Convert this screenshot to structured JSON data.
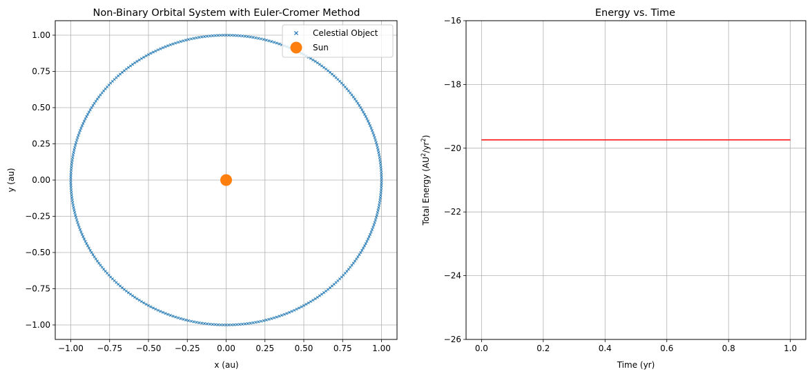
{
  "chart_data": [
    {
      "type": "scatter",
      "title": "Non-Binary Orbital System with Euler-Cromer Method",
      "xlabel": "x (au)",
      "ylabel": "y (au)",
      "xlim": [
        -1.1,
        1.1
      ],
      "ylim": [
        -1.1,
        1.1
      ],
      "x_ticks": [
        -1.0,
        -0.75,
        -0.5,
        -0.25,
        0.0,
        0.25,
        0.5,
        0.75,
        1.0
      ],
      "y_ticks": [
        -1.0,
        -0.75,
        -0.5,
        -0.25,
        0.0,
        0.25,
        0.5,
        0.75,
        1.0
      ],
      "x_tick_labels": [
        "−1.00",
        "−0.75",
        "−0.50",
        "−0.25",
        "0.00",
        "0.25",
        "0.50",
        "0.75",
        "1.00"
      ],
      "y_tick_labels": [
        "−1.00",
        "−0.75",
        "−0.50",
        "−0.25",
        "0.00",
        "0.25",
        "0.50",
        "0.75",
        "1.00"
      ],
      "grid": true,
      "legend_position": "upper right",
      "series": [
        {
          "name": "Celestial Object",
          "marker": "x",
          "color": "#1f77b4",
          "orbit": {
            "shape": "circle",
            "center": [
              0,
              0
            ],
            "radius": 1.0,
            "num_points": 360
          }
        },
        {
          "name": "Sun",
          "marker": "circle",
          "color": "#ff7f0e",
          "x": [
            0.0
          ],
          "y": [
            0.0
          ]
        }
      ]
    },
    {
      "type": "line",
      "title": "Energy vs. Time",
      "xlabel": "Time (yr)",
      "ylabel_main": "Total Energy (AU",
      "ylabel_sup1": "2",
      "ylabel_mid": "/yr",
      "ylabel_sup2": "2",
      "ylabel_end": ")",
      "xlim": [
        -0.05,
        1.05
      ],
      "ylim": [
        -26,
        -16
      ],
      "x_ticks": [
        0.0,
        0.2,
        0.4,
        0.6,
        0.8,
        1.0
      ],
      "y_ticks": [
        -26,
        -24,
        -22,
        -20,
        -18,
        -16
      ],
      "x_tick_labels": [
        "0.0",
        "0.2",
        "0.4",
        "0.6",
        "0.8",
        "1.0"
      ],
      "y_tick_labels": [
        "−26",
        "−24",
        "−22",
        "−20",
        "−18",
        "−16"
      ],
      "grid": true,
      "series": [
        {
          "color": "#ff0000",
          "x": [
            0.0,
            1.0
          ],
          "y": [
            -19.74,
            -19.74
          ]
        }
      ]
    }
  ]
}
